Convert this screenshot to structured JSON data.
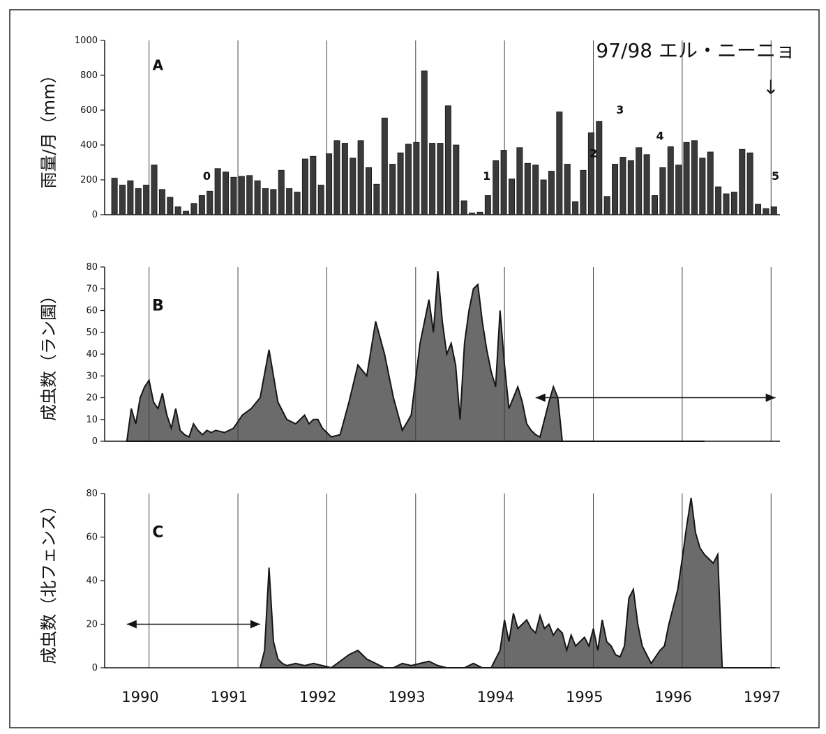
{
  "colors": {
    "ink": "#151515",
    "fill": "#3a3a3a",
    "grid": "#444444",
    "paper": "#ffffff"
  },
  "annotation_top": "97/98 エル・ニーニョ",
  "annotation_arrow": "↓",
  "years": [
    "1990",
    "1991",
    "1992",
    "1993",
    "1994",
    "1995",
    "1996",
    "1997"
  ],
  "chart_data": [
    {
      "type": "bar",
      "panel": "A",
      "ylabel": "雨量/月（mm）",
      "ylim": [
        0,
        1000
      ],
      "yticks": [
        "0",
        "200",
        "400",
        "600",
        "800",
        "1000"
      ],
      "x_start": "1990-01",
      "values": [
        210,
        170,
        195,
        150,
        170,
        285,
        145,
        100,
        45,
        20,
        65,
        110,
        135,
        265,
        245,
        215,
        220,
        225,
        195,
        150,
        145,
        255,
        150,
        130,
        320,
        335,
        170,
        350,
        425,
        410,
        325,
        425,
        270,
        175,
        555,
        290,
        355,
        405,
        415,
        825,
        410,
        410,
        625,
        400,
        80,
        10,
        15,
        110,
        310,
        370,
        205,
        385,
        295,
        285,
        200,
        250,
        590,
        290,
        75,
        255,
        470,
        535,
        105,
        290,
        330,
        310,
        385,
        345,
        110,
        270,
        390,
        285,
        415,
        425,
        325,
        360,
        160,
        120,
        130,
        375,
        355,
        60,
        35,
        45
      ],
      "annotations": [
        "A",
        "0",
        "1",
        "2",
        "3",
        "4",
        "5"
      ]
    },
    {
      "type": "area",
      "panel": "B",
      "ylabel": "成虫数（ラン園）",
      "ylim": [
        0,
        80
      ],
      "yticks": [
        "0",
        "10",
        "20",
        "30",
        "40",
        "50",
        "60",
        "70",
        "80"
      ],
      "x": [
        1990.0,
        1990.05,
        1990.1,
        1990.15,
        1990.2,
        1990.25,
        1990.3,
        1990.35,
        1990.4,
        1990.45,
        1990.5,
        1990.55,
        1990.6,
        1990.65,
        1990.7,
        1990.75,
        1990.8,
        1990.85,
        1990.9,
        1990.95,
        1991.0,
        1991.1,
        1991.2,
        1991.3,
        1991.4,
        1991.5,
        1991.6,
        1991.7,
        1991.8,
        1991.9,
        1992.0,
        1992.05,
        1992.1,
        1992.15,
        1992.2,
        1992.25,
        1992.3,
        1992.4,
        1992.5,
        1992.6,
        1992.7,
        1992.8,
        1992.9,
        1993.0,
        1993.1,
        1993.2,
        1993.3,
        1993.4,
        1993.45,
        1993.5,
        1993.55,
        1993.6,
        1993.65,
        1993.7,
        1993.75,
        1993.8,
        1993.85,
        1993.9,
        1993.95,
        1994.0,
        1994.05,
        1994.1,
        1994.15,
        1994.2,
        1994.25,
        1994.3,
        1994.35,
        1994.4,
        1994.45,
        1994.5,
        1994.55,
        1994.6,
        1994.65,
        1994.7,
        1994.75,
        1994.8,
        1994.85,
        1994.9,
        1994.95,
        1995.0,
        1995.05,
        1995.1,
        1995.15,
        1995.2,
        1995.25,
        1995.3,
        1995.35,
        1995.4,
        1995.45,
        1995.5,
        1995.55,
        1995.6,
        1995.65,
        1995.7,
        1995.75,
        1995.8,
        1995.85,
        1995.9,
        1995.95,
        1996.0,
        1996.05,
        1996.1,
        1996.15,
        1996.2,
        1996.25,
        1996.3,
        1996.35,
        1996.4,
        1996.45,
        1996.5
      ],
      "values": [
        0,
        15,
        8,
        20,
        25,
        28,
        18,
        15,
        22,
        12,
        6,
        15,
        5,
        3,
        2,
        8,
        5,
        3,
        5,
        4,
        5,
        4,
        6,
        12,
        15,
        20,
        42,
        18,
        10,
        8,
        12,
        8,
        10,
        10,
        6,
        4,
        2,
        3,
        18,
        35,
        30,
        55,
        40,
        20,
        5,
        12,
        45,
        65,
        50,
        78,
        55,
        40,
        45,
        35,
        10,
        45,
        60,
        70,
        72,
        55,
        42,
        32,
        25,
        60,
        35,
        15,
        20,
        25,
        18,
        8,
        5,
        3,
        2,
        10,
        18,
        25,
        20,
        0,
        0,
        0,
        0,
        0,
        0,
        0,
        0,
        0,
        0,
        0,
        0,
        0,
        0,
        0,
        0,
        0,
        0,
        0,
        0,
        0,
        0,
        0,
        0,
        0,
        0,
        0,
        0,
        0,
        0,
        0,
        0,
        0
      ],
      "range_arrow": [
        1994.6,
        1997.3
      ]
    },
    {
      "type": "area",
      "panel": "C",
      "ylabel": "成虫数（北フェンス）",
      "ylim": [
        0,
        80
      ],
      "yticks": [
        "0",
        "20",
        "40",
        "60",
        "80"
      ],
      "x": [
        1991.5,
        1991.55,
        1991.6,
        1991.65,
        1991.7,
        1991.75,
        1991.8,
        1991.9,
        1992.0,
        1992.1,
        1992.2,
        1992.3,
        1992.4,
        1992.5,
        1992.6,
        1992.7,
        1992.8,
        1992.9,
        1993.0,
        1993.1,
        1993.2,
        1993.3,
        1993.4,
        1993.5,
        1993.6,
        1993.7,
        1993.8,
        1993.9,
        1994.0,
        1994.1,
        1994.2,
        1994.25,
        1994.3,
        1994.35,
        1994.4,
        1994.45,
        1994.5,
        1994.55,
        1994.6,
        1994.65,
        1994.7,
        1994.75,
        1994.8,
        1994.85,
        1994.9,
        1994.95,
        1995.0,
        1995.05,
        1995.1,
        1995.15,
        1995.2,
        1995.25,
        1995.3,
        1995.35,
        1995.4,
        1995.45,
        1995.5,
        1995.55,
        1995.6,
        1995.65,
        1995.7,
        1995.75,
        1995.8,
        1995.85,
        1995.9,
        1995.95,
        1996.0,
        1996.05,
        1996.1,
        1996.15,
        1996.2,
        1996.25,
        1996.3,
        1996.35,
        1996.4,
        1996.45,
        1996.5,
        1996.55,
        1996.6,
        1996.65,
        1996.7,
        1996.75,
        1996.8,
        1996.85,
        1996.9,
        1996.95,
        1997.0,
        1997.05,
        1997.1,
        1997.15,
        1997.2,
        1997.25,
        1997.3
      ],
      "values": [
        0,
        8,
        46,
        12,
        4,
        2,
        1,
        2,
        1,
        2,
        1,
        0,
        3,
        6,
        8,
        4,
        2,
        0,
        0,
        2,
        1,
        2,
        3,
        1,
        0,
        0,
        0,
        2,
        0,
        0,
        8,
        22,
        12,
        25,
        18,
        20,
        22,
        18,
        16,
        24,
        18,
        20,
        15,
        18,
        16,
        8,
        15,
        10,
        12,
        14,
        10,
        18,
        8,
        22,
        12,
        10,
        6,
        5,
        10,
        32,
        36,
        20,
        10,
        6,
        2,
        5,
        8,
        10,
        20,
        28,
        36,
        50,
        65,
        78,
        62,
        55,
        52,
        50,
        48,
        52,
        0,
        0,
        0,
        0,
        0,
        0,
        0,
        0,
        0,
        0,
        0,
        0,
        0
      ],
      "range_arrow": [
        1990.0,
        1991.5
      ]
    }
  ]
}
